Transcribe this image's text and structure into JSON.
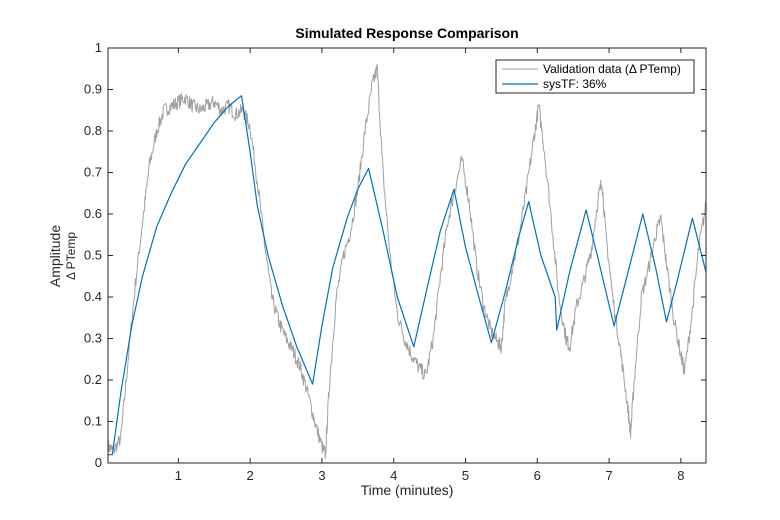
{
  "chart_data": {
    "type": "line",
    "title": "Simulated Response Comparison",
    "xlabel": "Time (minutes)",
    "ylabel": "Amplitude",
    "ylabel_sub": "Δ PTemp",
    "xlim": [
      0.02,
      8.35
    ],
    "ylim": [
      0,
      1
    ],
    "xticks": [
      1,
      2,
      3,
      4,
      5,
      6,
      7,
      8
    ],
    "yticks": [
      0,
      0.1,
      0.2,
      0.3,
      0.4,
      0.5,
      0.6,
      0.7,
      0.8,
      0.9,
      1
    ],
    "grid": false,
    "legend_position": "top-right",
    "colors": {
      "validation": "#a0a0a0",
      "model": "#0072bd",
      "axis": "#262626"
    },
    "series": [
      {
        "name": "Validation  data  (Δ  PTemp)",
        "role": "validation",
        "points": [
          [
            0.02,
            0.04
          ],
          [
            0.1,
            0.03
          ],
          [
            0.2,
            0.06
          ],
          [
            0.3,
            0.25
          ],
          [
            0.4,
            0.43
          ],
          [
            0.5,
            0.58
          ],
          [
            0.6,
            0.72
          ],
          [
            0.7,
            0.8
          ],
          [
            0.8,
            0.85
          ],
          [
            0.9,
            0.86
          ],
          [
            1.0,
            0.87
          ],
          [
            1.1,
            0.88
          ],
          [
            1.2,
            0.86
          ],
          [
            1.3,
            0.85
          ],
          [
            1.4,
            0.86
          ],
          [
            1.5,
            0.87
          ],
          [
            1.6,
            0.85
          ],
          [
            1.7,
            0.86
          ],
          [
            1.8,
            0.84
          ],
          [
            1.9,
            0.85
          ],
          [
            2.0,
            0.81
          ],
          [
            2.1,
            0.68
          ],
          [
            2.2,
            0.53
          ],
          [
            2.3,
            0.4
          ],
          [
            2.4,
            0.34
          ],
          [
            2.5,
            0.3
          ],
          [
            2.6,
            0.27
          ],
          [
            2.7,
            0.23
          ],
          [
            2.8,
            0.17
          ],
          [
            2.9,
            0.1
          ],
          [
            3.0,
            0.04
          ],
          [
            3.05,
            0.02
          ],
          [
            3.1,
            0.18
          ],
          [
            3.2,
            0.4
          ],
          [
            3.3,
            0.5
          ],
          [
            3.4,
            0.56
          ],
          [
            3.5,
            0.66
          ],
          [
            3.6,
            0.8
          ],
          [
            3.7,
            0.91
          ],
          [
            3.77,
            0.95
          ],
          [
            3.85,
            0.7
          ],
          [
            3.95,
            0.5
          ],
          [
            4.05,
            0.36
          ],
          [
            4.15,
            0.3
          ],
          [
            4.25,
            0.26
          ],
          [
            4.35,
            0.23
          ],
          [
            4.45,
            0.21
          ],
          [
            4.55,
            0.3
          ],
          [
            4.65,
            0.45
          ],
          [
            4.75,
            0.58
          ],
          [
            4.85,
            0.66
          ],
          [
            4.95,
            0.73
          ],
          [
            5.05,
            0.63
          ],
          [
            5.15,
            0.48
          ],
          [
            5.25,
            0.38
          ],
          [
            5.35,
            0.32
          ],
          [
            5.45,
            0.29
          ],
          [
            5.5,
            0.28
          ],
          [
            5.55,
            0.38
          ],
          [
            5.65,
            0.47
          ],
          [
            5.75,
            0.55
          ],
          [
            5.85,
            0.66
          ],
          [
            5.95,
            0.78
          ],
          [
            6.02,
            0.86
          ],
          [
            6.1,
            0.75
          ],
          [
            6.2,
            0.58
          ],
          [
            6.3,
            0.4
          ],
          [
            6.4,
            0.3
          ],
          [
            6.45,
            0.28
          ],
          [
            6.55,
            0.38
          ],
          [
            6.65,
            0.44
          ],
          [
            6.75,
            0.51
          ],
          [
            6.85,
            0.64
          ],
          [
            6.9,
            0.68
          ],
          [
            6.95,
            0.56
          ],
          [
            7.05,
            0.4
          ],
          [
            7.15,
            0.28
          ],
          [
            7.25,
            0.15
          ],
          [
            7.3,
            0.07
          ],
          [
            7.35,
            0.2
          ],
          [
            7.45,
            0.4
          ],
          [
            7.55,
            0.47
          ],
          [
            7.65,
            0.55
          ],
          [
            7.72,
            0.59
          ],
          [
            7.8,
            0.48
          ],
          [
            7.9,
            0.35
          ],
          [
            8.0,
            0.26
          ],
          [
            8.05,
            0.22
          ],
          [
            8.15,
            0.35
          ],
          [
            8.25,
            0.52
          ],
          [
            8.35,
            0.62
          ]
        ]
      },
      {
        "name": "sysTF:  36%",
        "role": "model",
        "points": [
          [
            0.02,
            0.02
          ],
          [
            0.08,
            0.02
          ],
          [
            0.2,
            0.17
          ],
          [
            0.35,
            0.33
          ],
          [
            0.5,
            0.45
          ],
          [
            0.7,
            0.57
          ],
          [
            0.9,
            0.65
          ],
          [
            1.1,
            0.72
          ],
          [
            1.3,
            0.77
          ],
          [
            1.5,
            0.82
          ],
          [
            1.7,
            0.86
          ],
          [
            1.88,
            0.885
          ],
          [
            2.0,
            0.75
          ],
          [
            2.1,
            0.62
          ],
          [
            2.25,
            0.5
          ],
          [
            2.45,
            0.38
          ],
          [
            2.65,
            0.28
          ],
          [
            2.87,
            0.19
          ],
          [
            3.0,
            0.33
          ],
          [
            3.15,
            0.47
          ],
          [
            3.35,
            0.59
          ],
          [
            3.5,
            0.66
          ],
          [
            3.65,
            0.71
          ],
          [
            3.85,
            0.56
          ],
          [
            4.05,
            0.4
          ],
          [
            4.28,
            0.28
          ],
          [
            4.45,
            0.41
          ],
          [
            4.65,
            0.56
          ],
          [
            4.84,
            0.66
          ],
          [
            5.0,
            0.52
          ],
          [
            5.2,
            0.39
          ],
          [
            5.36,
            0.29
          ],
          [
            5.55,
            0.41
          ],
          [
            5.75,
            0.55
          ],
          [
            5.88,
            0.63
          ],
          [
            6.05,
            0.5
          ],
          [
            6.25,
            0.4
          ],
          [
            6.27,
            0.32
          ],
          [
            6.45,
            0.46
          ],
          [
            6.68,
            0.61
          ],
          [
            6.85,
            0.49
          ],
          [
            7.07,
            0.33
          ],
          [
            7.25,
            0.45
          ],
          [
            7.47,
            0.6
          ],
          [
            7.65,
            0.47
          ],
          [
            7.8,
            0.34
          ],
          [
            7.95,
            0.44
          ],
          [
            8.16,
            0.59
          ],
          [
            8.35,
            0.46
          ]
        ]
      }
    ]
  }
}
